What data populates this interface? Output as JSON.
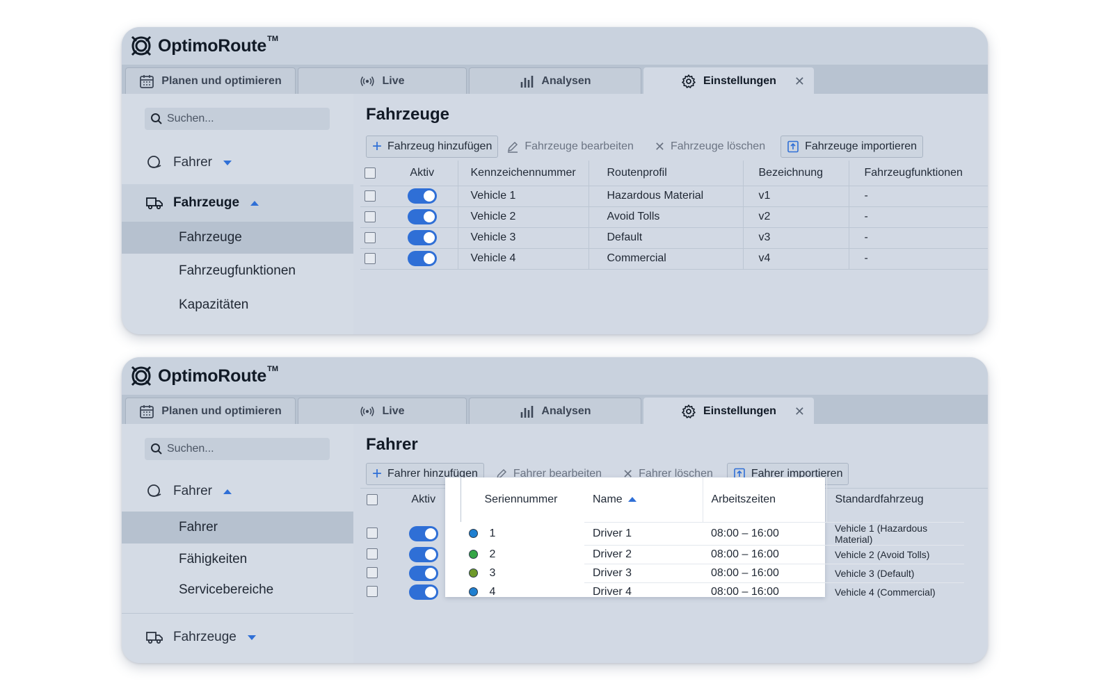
{
  "brand": {
    "name": "OptimoRoute",
    "tm": "TM"
  },
  "tabs": [
    {
      "label": "Planen und optimieren",
      "icon": "calendar-icon"
    },
    {
      "label": "Live",
      "icon": "broadcast-icon"
    },
    {
      "label": "Analysen",
      "icon": "bar-chart-icon"
    },
    {
      "label": "Einstellungen",
      "icon": "gear-icon",
      "active": true
    }
  ],
  "search_placeholder": "Suchen...",
  "accent": "#2f6fd6",
  "vehicles_view": {
    "nav": {
      "fahrer": "Fahrer",
      "fahrzeuge": "Fahrzeuge",
      "items": [
        "Fahrzeuge",
        "Fahrzeugfunktionen",
        "Kapazitäten"
      ]
    },
    "title": "Fahrzeuge",
    "toolbar": {
      "add": "Fahrzeug hinzufügen",
      "edit": "Fahrzeuge bearbeiten",
      "delete": "Fahrzeuge löschen",
      "import": "Fahrzeuge importieren"
    },
    "columns": [
      "Aktiv",
      "Kennzeichennummer",
      "Routenprofil",
      "Bezeichnung",
      "Fahrzeugfunktionen"
    ],
    "rows": [
      {
        "plate": "Vehicle 1",
        "profile": "Hazardous Material",
        "label": "v1",
        "functions": "-"
      },
      {
        "plate": "Vehicle 2",
        "profile": "Avoid Tolls",
        "label": "v2",
        "functions": "-"
      },
      {
        "plate": "Vehicle 3",
        "profile": "Default",
        "label": "v3",
        "functions": "-"
      },
      {
        "plate": "Vehicle 4",
        "profile": "Commercial",
        "label": "v4",
        "functions": "-"
      }
    ]
  },
  "drivers_view": {
    "nav": {
      "fahrer": "Fahrer",
      "fahrzeuge": "Fahrzeuge",
      "items": [
        "Fahrer",
        "Fähigkeiten",
        "Servicebereiche"
      ]
    },
    "title": "Fahrer",
    "toolbar": {
      "add": "Fahrer hinzufügen",
      "edit": "Fahrer bearbeiten",
      "delete": "Fahrer löschen",
      "import": "Fahrer importieren"
    },
    "columns": [
      "Aktiv",
      "Seriennummer",
      "Name",
      "Arbeitszeiten",
      "Standardfahrzeug"
    ],
    "rows": [
      {
        "serial": "1",
        "color": "#1f7fd0",
        "name": "Driver 1",
        "hours": "08:00 – 16:00",
        "vehicle": "Vehicle 1 (Hazardous Material)"
      },
      {
        "serial": "2",
        "color": "#35a546",
        "name": "Driver 2",
        "hours": "08:00 – 16:00",
        "vehicle": "Vehicle 2 (Avoid Tolls)"
      },
      {
        "serial": "3",
        "color": "#6f9a2a",
        "name": "Driver 3",
        "hours": "08:00 – 16:00",
        "vehicle": "Vehicle 3 (Default)"
      },
      {
        "serial": "4",
        "color": "#1f7fd0",
        "name": "Driver 4",
        "hours": "08:00 – 16:00",
        "vehicle": "Vehicle 4 (Commercial)"
      }
    ]
  }
}
